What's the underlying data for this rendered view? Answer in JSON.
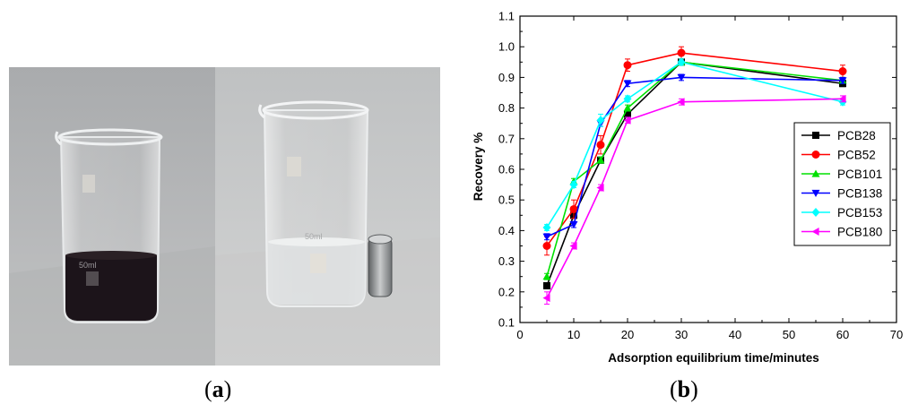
{
  "panels": {
    "a": "a",
    "b": "b"
  },
  "photo": {
    "left_beaker_mark": "50ml",
    "right_beaker_mark": "50ml",
    "colors": {
      "background_left": "#b4b6b7",
      "background_right": "#c4c5c5",
      "dark_liquid": "#1c141a",
      "clear_liquid": "#dcdfe0",
      "magnet": "#8a8d8f"
    }
  },
  "chart_data": {
    "type": "line",
    "xlabel": "Adsorption equilibrium time/minutes",
    "ylabel": "Recovery %",
    "xlim": [
      0,
      70
    ],
    "ylim": [
      0.1,
      1.1
    ],
    "xticks": [
      0,
      10,
      20,
      30,
      40,
      50,
      60,
      70
    ],
    "yticks": [
      0.1,
      0.2,
      0.3,
      0.4,
      0.5,
      0.6,
      0.7,
      0.8,
      0.9,
      1.0,
      1.1
    ],
    "ytick_labels": [
      "0.1",
      "0.2",
      "0.3",
      "0.4",
      "0.5",
      "0.6",
      "0.7",
      "0.8",
      "0.9",
      "1.0",
      "1.1"
    ],
    "x": [
      5,
      10,
      15,
      20,
      30,
      60
    ],
    "grid": false,
    "legend_position": "right",
    "series": [
      {
        "name": "PCB28",
        "color": "#000000",
        "marker": "square",
        "values": [
          0.22,
          0.45,
          0.63,
          0.78,
          0.95,
          0.88
        ],
        "errors": [
          0.01,
          0.01,
          0.01,
          0.01,
          0.01,
          0.01
        ]
      },
      {
        "name": "PCB52",
        "color": "#ff0000",
        "marker": "circle",
        "values": [
          0.35,
          0.47,
          0.68,
          0.94,
          0.98,
          0.92
        ],
        "errors": [
          0.03,
          0.03,
          0.03,
          0.02,
          0.02,
          0.02
        ]
      },
      {
        "name": "PCB101",
        "color": "#00e000",
        "marker": "triangle-up",
        "values": [
          0.25,
          0.56,
          0.63,
          0.8,
          0.95,
          0.89
        ],
        "errors": [
          0.01,
          0.01,
          0.01,
          0.01,
          0.01,
          0.01
        ]
      },
      {
        "name": "PCB138",
        "color": "#0000ff",
        "marker": "triangle-down",
        "values": [
          0.38,
          0.42,
          0.75,
          0.88,
          0.9,
          0.89
        ],
        "errors": [
          0.01,
          0.01,
          0.01,
          0.01,
          0.01,
          0.01
        ]
      },
      {
        "name": "PCB153",
        "color": "#00ffff",
        "marker": "diamond",
        "values": [
          0.41,
          0.55,
          0.76,
          0.83,
          0.95,
          0.82
        ],
        "errors": [
          0.01,
          0.01,
          0.02,
          0.01,
          0.01,
          0.01
        ]
      },
      {
        "name": "PCB180",
        "color": "#ff00ff",
        "marker": "triangle-left",
        "values": [
          0.18,
          0.35,
          0.54,
          0.76,
          0.82,
          0.83
        ],
        "errors": [
          0.02,
          0.01,
          0.01,
          0.01,
          0.01,
          0.01
        ]
      }
    ]
  }
}
